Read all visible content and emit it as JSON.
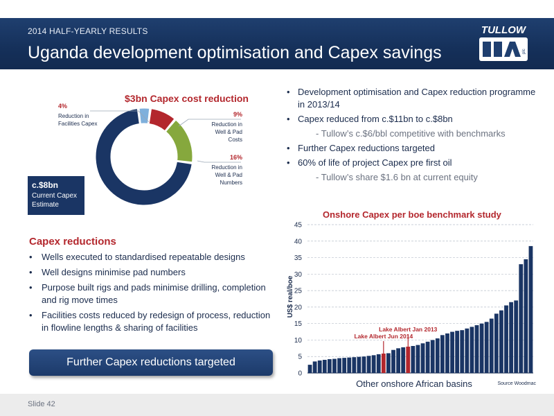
{
  "header": {
    "subtitle": "2014 HALF-YEARLY RESULTS",
    "title": "Uganda development optimisation and Capex savings",
    "logo_text": "TULLOW",
    "logo_sub": "plc"
  },
  "donut": {
    "title": "$3bn Capex cost reduction",
    "segments": [
      {
        "pct": "4%",
        "label": "Reduction in Facilities Capex",
        "value": 4,
        "color": "#7fb0dc"
      },
      {
        "pct": "9%",
        "label": "Reduction in Well & Pad Costs",
        "value": 9,
        "color": "#b3272d"
      },
      {
        "pct": "16%",
        "label": "Reduction in Well & Pad Numbers",
        "value": 16,
        "color": "#86a83d"
      },
      {
        "pct": "",
        "label": "",
        "value": 71,
        "color": "#1a3564"
      }
    ],
    "estimate_value": "c.$8bn",
    "estimate_label": "Current Capex Estimate"
  },
  "right_bullets": [
    {
      "text": "Development optimisation and Capex reduction programme in 2013/14",
      "sub": false
    },
    {
      "text": "Capex reduced from  c.$11bn to c.$8bn",
      "sub": false
    },
    {
      "text": "- Tullow’s c.$6/bbl competitive with benchmarks",
      "sub": true
    },
    {
      "text": "Further Capex reductions targeted",
      "sub": false
    },
    {
      "text": "60% of life of project Capex pre first oil",
      "sub": false
    },
    {
      "text": "- Tullow’s share $1.6 bn at current equity",
      "sub": true
    }
  ],
  "capex_reductions": {
    "heading": "Capex reductions",
    "bullets": [
      "Wells executed to standardised repeatable designs",
      "Well designs minimise pad numbers",
      "Purpose built rigs and pads minimise drilling, completion and rig move times",
      "Facilities costs reduced by redesign of process, reduction in flowline lengths & sharing of facilities"
    ]
  },
  "cta_label": "Further Capex reductions targeted",
  "chart_data": {
    "type": "bar",
    "title": "Onshore Capex per boe benchmark study",
    "xlabel": "Other onshore African basins",
    "ylabel": "US$ real/boe",
    "ylim": [
      0,
      45
    ],
    "yticks": [
      0,
      5,
      10,
      15,
      20,
      25,
      30,
      35,
      40,
      45
    ],
    "grid": true,
    "values": [
      2.5,
      3.5,
      3.8,
      4.0,
      4.2,
      4.3,
      4.5,
      4.6,
      4.7,
      4.8,
      4.9,
      5.0,
      5.2,
      5.4,
      5.7,
      5.9,
      6.0,
      7.0,
      7.5,
      7.8,
      8.0,
      8.2,
      8.5,
      9.0,
      9.5,
      10.0,
      10.5,
      11.5,
      12.0,
      12.5,
      12.8,
      13.0,
      13.5,
      14.0,
      14.5,
      15.0,
      15.5,
      16.5,
      18.0,
      19.0,
      20.5,
      21.5,
      22.0,
      33.0,
      34.5,
      38.5
    ],
    "bar_color": "#1a3564",
    "highlights": [
      {
        "index": 15,
        "label": "Lake Albert Jun 2014",
        "color": "#b3272d"
      },
      {
        "index": 20,
        "label": "Lake Albert Jan 2013",
        "color": "#b3272d"
      }
    ],
    "source": "Source Woodmac"
  },
  "footer": {
    "slide_number": "Slide 42"
  }
}
